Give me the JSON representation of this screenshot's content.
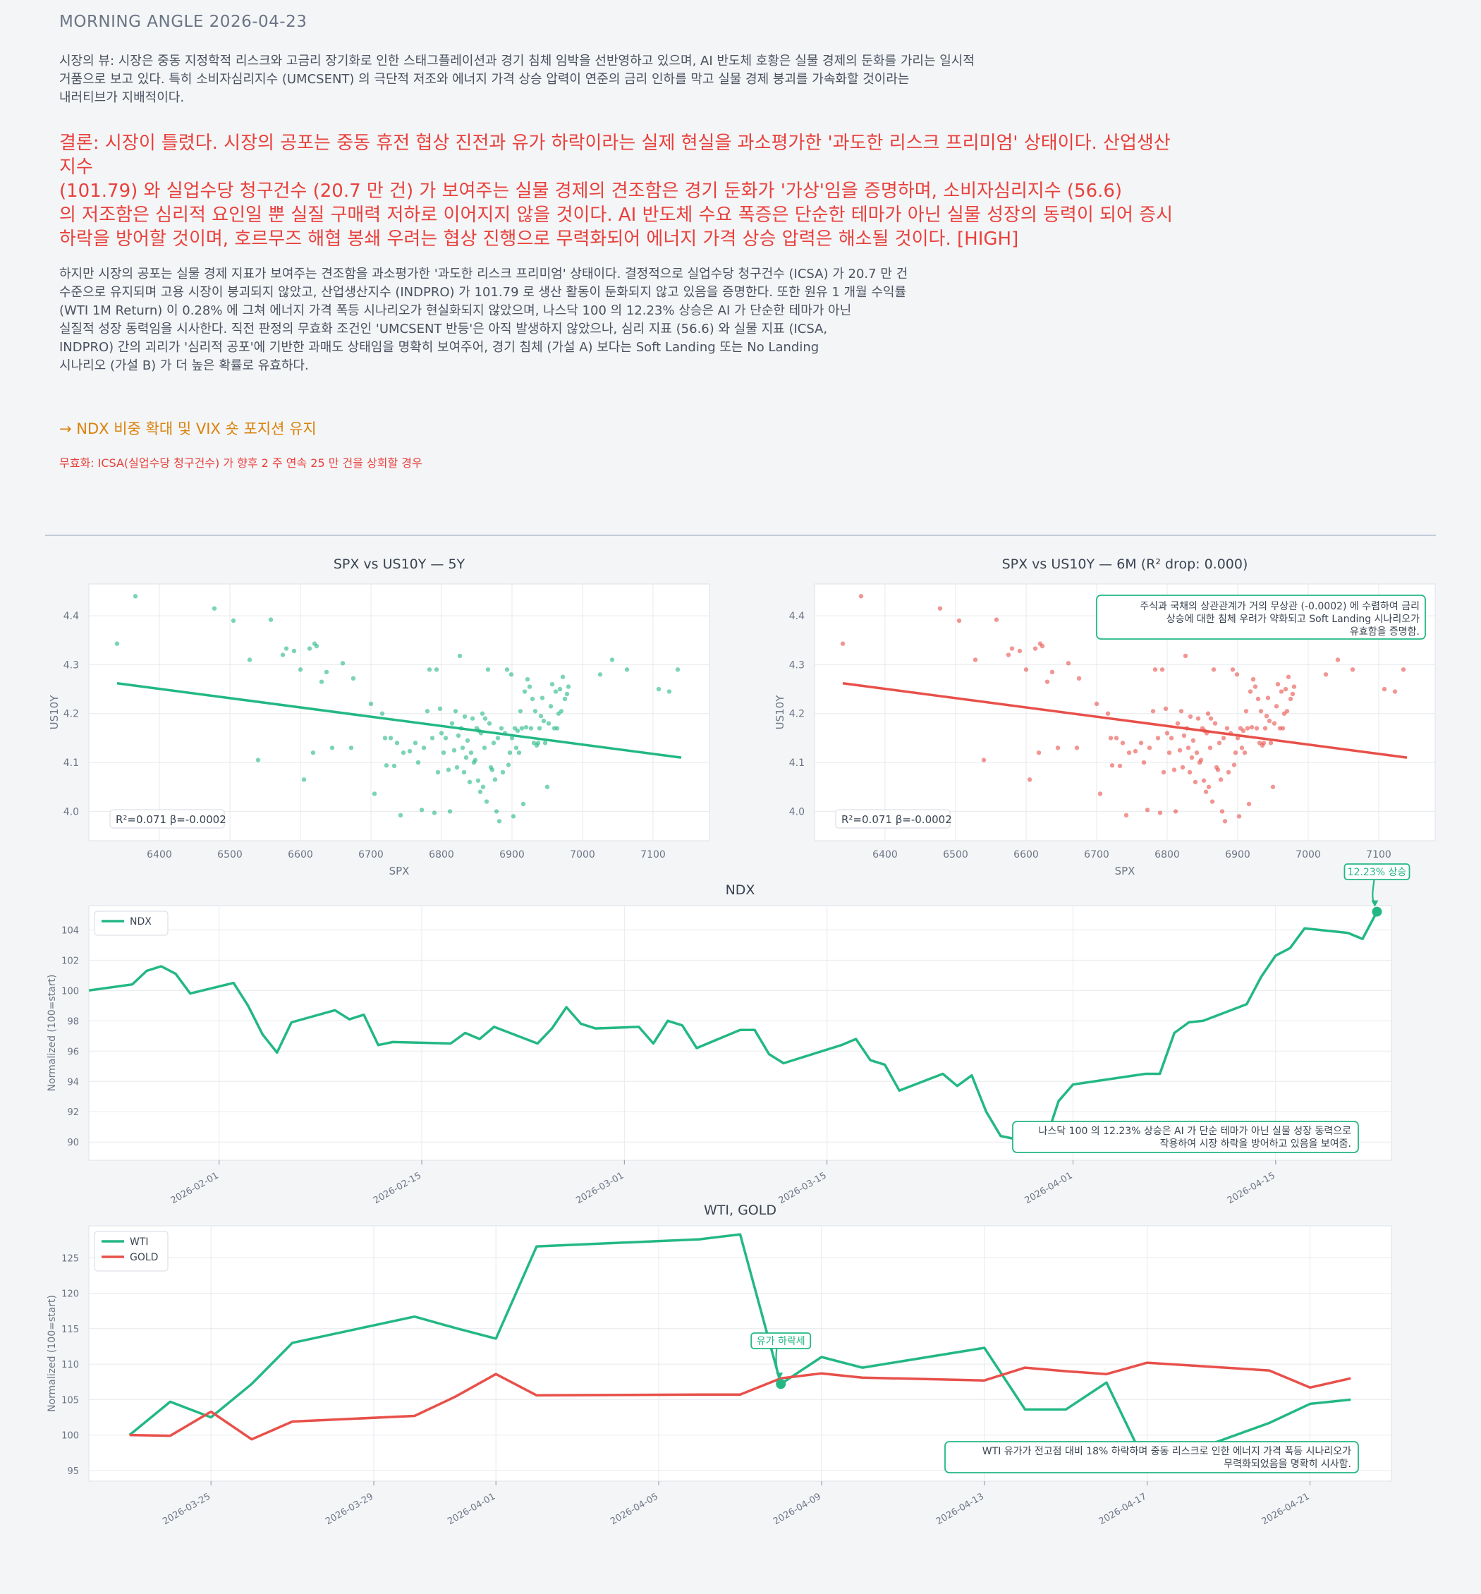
{
  "header": {
    "title": "MORNING ANGLE  2026-04-23",
    "view_lines": [
      "시장의 뷰: 시장은 중동 지정학적 리스크와 고금리 장기화로 인한 스태그플레이션과 경기 침체 임박을 선반영하고 있으며, AI 반도체 호황은 실물 경제의 둔화를 가리는 일시적",
      "거품으로 보고 있다. 특히 소비자심리지수 (UMCSENT) 의 극단적 저조와 에너지 가격 상승 압력이 연준의 금리 인하를 막고 실물 경제 붕괴를 가속화할 것이라는",
      "내러티브가 지배적이다."
    ],
    "conclusion_lines": [
      "결론: 시장이 틀렸다. 시장의 공포는 중동 휴전 협상 진전과 유가 하락이라는 실제 현실을 과소평가한 '과도한 리스크 프리미엄' 상태이다. 산업생산지수",
      "(101.79) 와 실업수당 청구건수 (20.7 만 건) 가 보여주는 실물 경제의 견조함은 경기 둔화가 '가상'임을 증명하며, 소비자심리지수 (56.6)",
      "의 저조함은 심리적 요인일 뿐 실질 구매력 저하로 이어지지 않을 것이다. AI 반도체 수요 폭증은 단순한 테마가 아닌 실물 성장의 동력이 되어 증시",
      "하락을 방어할 것이며, 호르무즈 해협 봉쇄 우려는 협상 진행으로 무력화되어 에너지 가격 상승 압력은 해소될 것이다.  [HIGH]"
    ],
    "body_lines": [
      "하지만 시장의 공포는 실물 경제 지표가 보여주는 견조함을 과소평가한 '과도한 리스크 프리미엄' 상태이다. 결정적으로 실업수당 청구건수 (ICSA) 가 20.7 만 건",
      "수준으로 유지되며 고용 시장이 붕괴되지 않았고, 산업생산지수 (INDPRO) 가 101.79 로 생산 활동이 둔화되지 않고 있음을 증명한다. 또한 원유 1 개월 수익률",
      "(WTI 1M Return) 이 0.28% 에 그쳐 에너지 가격 폭등 시나리오가 현실화되지 않았으며, 나스닥 100 의 12.23% 상승은 AI 가 단순한 테마가 아닌",
      "실질적 성장 동력임을 시사한다. 직전 판정의 무효화 조건인 'UMCSENT 반등'은 아직 발생하지 않았으나, 심리 지표 (56.6) 와 실물 지표 (ICSA,",
      "INDPRO) 간의 괴리가 '심리적 공포'에 기반한 과매도 상태임을 명확히 보여주어, 경기 침체 (가설 A) 보다는 Soft Landing 또는 No Landing",
      "시나리오 (가설 B) 가 더 높은 확률로 유효하다."
    ],
    "action": "→ NDX 비중 확대 및 VIX 숏 포지션 유지",
    "invalidation": "무효화: ICSA(실업수당 청구건수) 가 향후 2 주 연속 25 만 건을 상회할 경우"
  },
  "colors": {
    "green": "#23b883",
    "red": "#e8504a",
    "grid": "#e7e9ee",
    "axis": "#6b7585"
  },
  "chart_data": [
    {
      "type": "scatter",
      "title": "SPX vs US10Y — 5Y",
      "xlabel": "SPX",
      "ylabel": "US10Y",
      "xlim": [
        6300,
        7180
      ],
      "ylim": [
        3.94,
        4.465
      ],
      "xticks": [
        6400,
        6500,
        6600,
        6700,
        6800,
        6900,
        7000,
        7100
      ],
      "yticks": [
        4.0,
        4.1,
        4.2,
        4.3,
        4.4
      ],
      "fit": {
        "x": [
          6340,
          7140
        ],
        "y": [
          4.262,
          4.11
        ]
      },
      "stats_label": "R²=0.071  β=-0.0002",
      "annotation": "",
      "points": [
        [
          6340,
          4.343
        ],
        [
          6366,
          4.44
        ],
        [
          6478,
          4.415
        ],
        [
          6505,
          4.39
        ],
        [
          6528,
          4.31
        ],
        [
          6540,
          4.105
        ],
        [
          6558,
          4.392
        ],
        [
          6575,
          4.32
        ],
        [
          6580,
          4.333
        ],
        [
          6591,
          4.328
        ],
        [
          6600,
          4.29
        ],
        [
          6605,
          4.065
        ],
        [
          6613,
          4.333
        ],
        [
          6618,
          4.12
        ],
        [
          6620,
          4.343
        ],
        [
          6623,
          4.338
        ],
        [
          6630,
          4.265
        ],
        [
          6637,
          4.285
        ],
        [
          6645,
          4.13
        ],
        [
          6660,
          4.303
        ],
        [
          6672,
          4.13
        ],
        [
          6675,
          4.272
        ],
        [
          6700,
          4.22
        ],
        [
          6705,
          4.036
        ],
        [
          6716,
          4.2
        ],
        [
          6720,
          4.15
        ],
        [
          6722,
          4.094
        ],
        [
          6728,
          4.15
        ],
        [
          6733,
          4.093
        ],
        [
          6737,
          4.14
        ],
        [
          6742,
          3.992
        ],
        [
          6746,
          4.12
        ],
        [
          6755,
          4.123
        ],
        [
          6763,
          4.14
        ],
        [
          6767,
          4.1
        ],
        [
          6772,
          4.003
        ],
        [
          6775,
          4.13
        ],
        [
          6780,
          4.205
        ],
        [
          6783,
          4.29
        ],
        [
          6787,
          4.15
        ],
        [
          6790,
          3.997
        ],
        [
          6793,
          4.29
        ],
        [
          6795,
          4.08
        ],
        [
          6798,
          4.21
        ],
        [
          6800,
          4.16
        ],
        [
          6803,
          4.12
        ],
        [
          6806,
          4.15
        ],
        [
          6810,
          4.085
        ],
        [
          6812,
          4.0
        ],
        [
          6815,
          4.18
        ],
        [
          6818,
          4.125
        ],
        [
          6820,
          4.205
        ],
        [
          6822,
          4.09
        ],
        [
          6824,
          4.155
        ],
        [
          6826,
          4.318
        ],
        [
          6828,
          4.17
        ],
        [
          6830,
          4.13
        ],
        [
          6832,
          4.08
        ],
        [
          6833,
          4.194
        ],
        [
          6835,
          4.11
        ],
        [
          6837,
          4.145
        ],
        [
          6840,
          4.06
        ],
        [
          6842,
          4.12
        ],
        [
          6844,
          4.19
        ],
        [
          6846,
          4.1
        ],
        [
          6848,
          4.105
        ],
        [
          6850,
          4.17
        ],
        [
          6852,
          4.063
        ],
        [
          6853,
          4.165
        ],
        [
          6855,
          4.04
        ],
        [
          6856,
          4.16
        ],
        [
          6858,
          4.2
        ],
        [
          6859,
          4.05
        ],
        [
          6861,
          4.13
        ],
        [
          6862,
          4.19
        ],
        [
          6864,
          4.02
        ],
        [
          6866,
          4.29
        ],
        [
          6868,
          4.18
        ],
        [
          6870,
          4.09
        ],
        [
          6872,
          4.085
        ],
        [
          6874,
          4.14
        ],
        [
          6876,
          4.065
        ],
        [
          6878,
          4.0
        ],
        [
          6880,
          4.15
        ],
        [
          6882,
          3.98
        ],
        [
          6885,
          4.17
        ],
        [
          6887,
          4.08
        ],
        [
          6890,
          4.16
        ],
        [
          6893,
          4.29
        ],
        [
          6895,
          4.095
        ],
        [
          6897,
          4.12
        ],
        [
          6899,
          4.28
        ],
        [
          6900,
          4.15
        ],
        [
          6902,
          3.99
        ],
        [
          6904,
          4.17
        ],
        [
          6906,
          4.13
        ],
        [
          6908,
          4.165
        ],
        [
          6910,
          4.12
        ],
        [
          6912,
          4.205
        ],
        [
          6914,
          4.17
        ],
        [
          6916,
          4.015
        ],
        [
          6918,
          4.245
        ],
        [
          6920,
          4.172
        ],
        [
          6922,
          4.27
        ],
        [
          6925,
          4.255
        ],
        [
          6927,
          4.17
        ],
        [
          6929,
          4.23
        ],
        [
          6931,
          4.14
        ],
        [
          6933,
          4.205
        ],
        [
          6935,
          4.135
        ],
        [
          6937,
          4.14
        ],
        [
          6939,
          4.17
        ],
        [
          6941,
          4.195
        ],
        [
          6943,
          4.232
        ],
        [
          6945,
          4.185
        ],
        [
          6947,
          4.14
        ],
        [
          6950,
          4.05
        ],
        [
          6952,
          4.18
        ],
        [
          6955,
          4.215
        ],
        [
          6957,
          4.26
        ],
        [
          6960,
          4.17
        ],
        [
          6962,
          4.245
        ],
        [
          6964,
          4.17
        ],
        [
          6966,
          4.2
        ],
        [
          6968,
          4.25
        ],
        [
          6970,
          4.205
        ],
        [
          6972,
          4.275
        ],
        [
          6975,
          4.23
        ],
        [
          6978,
          4.24
        ],
        [
          6980,
          4.255
        ],
        [
          7025,
          4.28
        ],
        [
          7042,
          4.31
        ],
        [
          7063,
          4.29
        ],
        [
          7108,
          4.25
        ],
        [
          7123,
          4.245
        ],
        [
          7135,
          4.29
        ]
      ]
    },
    {
      "type": "scatter",
      "title": "SPX vs US10Y — 6M (R² drop: 0.000)",
      "xlabel": "SPX",
      "ylabel": "US10Y",
      "xlim": [
        6300,
        7180
      ],
      "ylim": [
        3.94,
        4.465
      ],
      "xticks": [
        6400,
        6500,
        6600,
        6700,
        6800,
        6900,
        7000,
        7100
      ],
      "yticks": [
        4.0,
        4.1,
        4.2,
        4.3,
        4.4
      ],
      "fit": {
        "x": [
          6340,
          7140
        ],
        "y": [
          4.262,
          4.11
        ]
      },
      "stats_label": "R²=0.071  β=-0.0002",
      "annotation": [
        "주식과 국채의 상관관계가 거의 무상관 (-0.0002) 에 수렴하여 금리",
        "상승에 대한 침체 우려가 약화되고 Soft Landing 시나리오가",
        "유효함을 증명함."
      ],
      "points": "same-as-first"
    },
    {
      "type": "line",
      "title": "NDX",
      "ylabel": "Normalized (100=start)",
      "ylim": [
        88.8,
        105.6
      ],
      "yticks": [
        90,
        92,
        94,
        96,
        98,
        100,
        102,
        104
      ],
      "xdomain": [
        "2026-01-23",
        "2026-04-23"
      ],
      "xticks": [
        "2026-02-01",
        "2026-02-15",
        "2026-03-01",
        "2026-03-15",
        "2026-04-01",
        "2026-04-15"
      ],
      "series": [
        {
          "name": "NDX",
          "x": [
            "2026-01-23",
            "2026-01-26",
            "2026-01-27",
            "2026-01-28",
            "2026-01-29",
            "2026-01-30",
            "2026-02-02",
            "2026-02-03",
            "2026-02-04",
            "2026-02-05",
            "2026-02-06",
            "2026-02-09",
            "2026-02-10",
            "2026-02-11",
            "2026-02-12",
            "2026-02-13",
            "2026-02-17",
            "2026-02-18",
            "2026-02-19",
            "2026-02-20",
            "2026-02-23",
            "2026-02-24",
            "2026-02-25",
            "2026-02-26",
            "2026-02-27",
            "2026-03-02",
            "2026-03-03",
            "2026-03-04",
            "2026-03-05",
            "2026-03-06",
            "2026-03-09",
            "2026-03-10",
            "2026-03-11",
            "2026-03-12",
            "2026-03-13",
            "2026-03-16",
            "2026-03-17",
            "2026-03-18",
            "2026-03-19",
            "2026-03-20",
            "2026-03-23",
            "2026-03-24",
            "2026-03-25",
            "2026-03-26",
            "2026-03-27",
            "2026-03-30",
            "2026-03-31",
            "2026-04-01",
            "2026-04-06",
            "2026-04-07",
            "2026-04-08",
            "2026-04-09",
            "2026-04-10",
            "2026-04-13",
            "2026-04-14",
            "2026-04-15",
            "2026-04-16",
            "2026-04-17",
            "2026-04-20",
            "2026-04-21",
            "2026-04-22"
          ],
          "values": [
            100.0,
            100.4,
            101.3,
            101.6,
            101.1,
            99.8,
            100.5,
            99.0,
            97.1,
            95.9,
            97.9,
            98.7,
            98.1,
            98.4,
            96.4,
            96.6,
            96.5,
            97.2,
            96.8,
            97.6,
            96.5,
            97.5,
            98.9,
            97.8,
            97.5,
            97.6,
            96.5,
            98.0,
            97.7,
            96.2,
            97.4,
            97.4,
            95.8,
            95.2,
            95.5,
            96.4,
            96.8,
            95.4,
            95.1,
            93.4,
            94.5,
            93.7,
            94.4,
            92.0,
            90.4,
            89.8,
            92.7,
            93.8,
            94.5,
            94.5,
            97.2,
            97.9,
            98.0,
            99.1,
            100.9,
            102.3,
            102.8,
            104.1,
            103.8,
            103.4,
            105.2
          ]
        }
      ],
      "annotations": [
        {
          "text": "12.23% 상승",
          "x": "2026-04-22",
          "y": 105.2
        },
        {
          "text": [
            "나스닥 100 의 12.23% 상승은 AI 가 단순 테마가 아닌 실물 성장 동력으로",
            "작용하여 시장 하락을 방어하고 있음을 보여줌."
          ]
        }
      ]
    },
    {
      "type": "line",
      "title": "WTI, GOLD",
      "ylabel": "Normalized (100=start)",
      "ylim": [
        93.5,
        129.5
      ],
      "yticks": [
        95,
        100,
        105,
        110,
        115,
        120,
        125
      ],
      "xdomain": [
        "2026-03-22",
        "2026-04-23"
      ],
      "xticks": [
        "2026-03-25",
        "2026-03-29",
        "2026-04-01",
        "2026-04-05",
        "2026-04-09",
        "2026-04-13",
        "2026-04-17",
        "2026-04-21"
      ],
      "series": [
        {
          "name": "WTI",
          "x": [
            "2026-03-23",
            "2026-03-24",
            "2026-03-25",
            "2026-03-26",
            "2026-03-27",
            "2026-03-30",
            "2026-03-31",
            "2026-04-01",
            "2026-04-02",
            "2026-04-06",
            "2026-04-07",
            "2026-04-08",
            "2026-04-09",
            "2026-04-10",
            "2026-04-13",
            "2026-04-14",
            "2026-04-15",
            "2026-04-16",
            "2026-04-17",
            "2026-04-20",
            "2026-04-21",
            "2026-04-22"
          ],
          "values": [
            100.0,
            104.7,
            102.5,
            107.2,
            113.0,
            116.7,
            115.1,
            113.6,
            126.6,
            127.6,
            128.3,
            107.2,
            111.0,
            109.5,
            112.3,
            103.6,
            103.6,
            107.4,
            95.5,
            101.7,
            104.4,
            105.0
          ]
        },
        {
          "name": "GOLD",
          "x": [
            "2026-03-23",
            "2026-03-24",
            "2026-03-25",
            "2026-03-26",
            "2026-03-27",
            "2026-03-30",
            "2026-03-31",
            "2026-04-01",
            "2026-04-02",
            "2026-04-06",
            "2026-04-07",
            "2026-04-08",
            "2026-04-09",
            "2026-04-10",
            "2026-04-13",
            "2026-04-14",
            "2026-04-15",
            "2026-04-16",
            "2026-04-17",
            "2026-04-20",
            "2026-04-21",
            "2026-04-22"
          ],
          "values": [
            100.0,
            99.9,
            103.3,
            99.4,
            101.9,
            102.7,
            105.4,
            108.6,
            105.6,
            105.7,
            105.7,
            108.0,
            108.7,
            108.1,
            107.7,
            109.5,
            109.0,
            108.6,
            110.2,
            109.1,
            106.7,
            108.0
          ]
        }
      ],
      "annotations": [
        {
          "text": "유가 하락세",
          "x": "2026-04-08",
          "y": 107.2
        },
        {
          "text": [
            "WTI 유가가 전고점 대비 18% 하락하며 중동 리스크로 인한 에너지 가격 폭등 시나리오가",
            "무력화되었음을 명확히 시사함."
          ]
        }
      ]
    }
  ]
}
